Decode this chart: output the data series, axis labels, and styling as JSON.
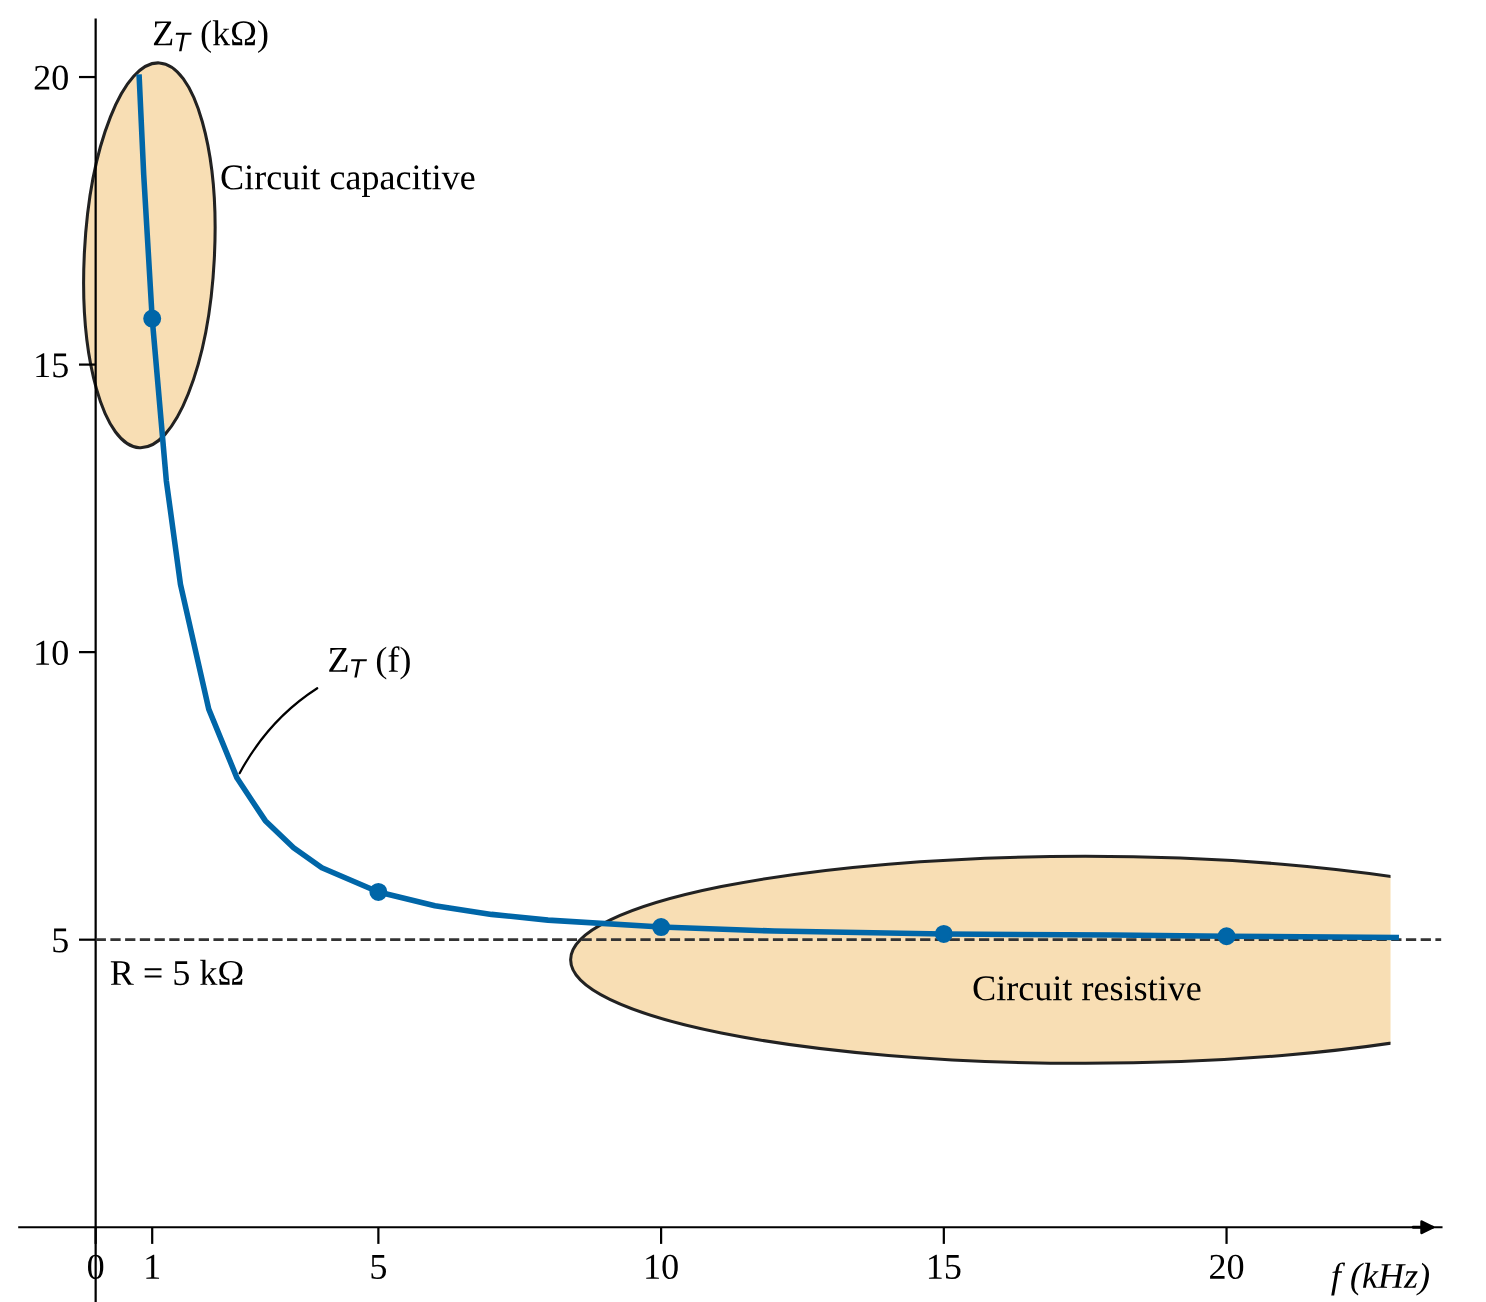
{
  "chart_data": {
    "type": "line",
    "xlabel": "f (kHz)",
    "ylabel": "Z$_{T}$ (kΩ)",
    "xlim": [
      -1.35,
      23.8
    ],
    "ylim": [
      -1.3,
      21
    ],
    "xticks": [
      0,
      1,
      5,
      10,
      15,
      20
    ],
    "yticks": [
      5,
      10,
      15,
      20
    ],
    "grid": false,
    "legend": false,
    "line_style": "solid",
    "series": [
      {
        "color": "#0066a8",
        "marker": "none",
        "x": [
          0.77,
          0.85,
          1,
          1.25,
          1.5,
          2,
          2.5,
          3,
          3.5,
          4,
          5,
          6,
          7,
          8,
          10,
          12,
          15,
          18,
          20,
          23
        ],
        "values": [
          20.0,
          18.3,
          15.8,
          12.98,
          11.18,
          9.01,
          7.81,
          7.07,
          6.6,
          6.25,
          5.83,
          5.59,
          5.44,
          5.34,
          5.22,
          5.15,
          5.1,
          5.08,
          5.06,
          5.04
        ]
      },
      {
        "type": "scatter",
        "color": "#0066a8",
        "marker": "circle",
        "x": [
          1,
          5,
          10,
          15,
          20
        ],
        "values": [
          15.8,
          5.83,
          5.22,
          5.1,
          5.06
        ]
      }
    ],
    "ref_lines": [
      {
        "axis": "y",
        "value": 5,
        "label": "R = 5 kΩ",
        "color": "#333333",
        "line_style": "dashed"
      }
    ],
    "annotations": [
      {
        "text": "Z$_{T}$ (f)",
        "x": 2.5,
        "y": 7.81
      },
      "Circuit capacitive",
      "Circuit resistive"
    ]
  }
}
